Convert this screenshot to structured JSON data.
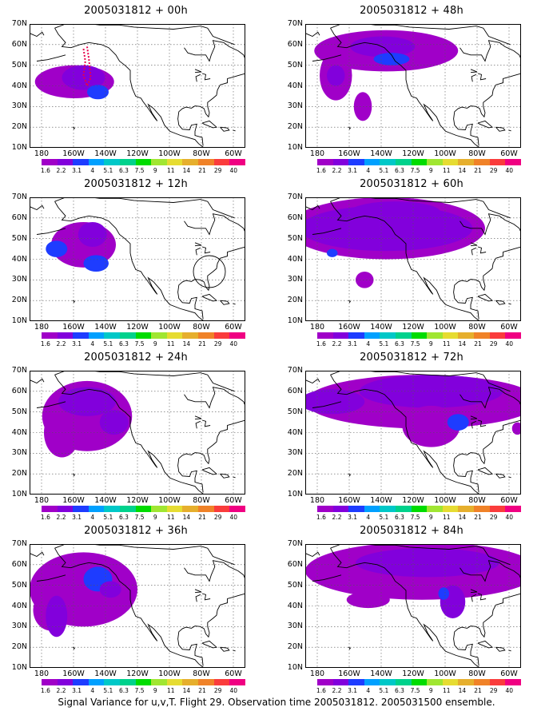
{
  "panels": [
    {
      "title": "2005031812 + 00h"
    },
    {
      "title": "2005031812 + 48h"
    },
    {
      "title": "2005031812 + 12h"
    },
    {
      "title": "2005031812 + 60h"
    },
    {
      "title": "2005031812 + 24h"
    },
    {
      "title": "2005031812 + 72h"
    },
    {
      "title": "2005031812 + 36h"
    },
    {
      "title": "2005031812 + 84h"
    }
  ],
  "map_axes": {
    "lat_labels": [
      "70N",
      "60N",
      "50N",
      "40N",
      "30N",
      "20N",
      "10N"
    ],
    "lon_labels": [
      "180",
      "160W",
      "140W",
      "120W",
      "100W",
      "80W",
      "60W"
    ]
  },
  "colorbar": {
    "labels": [
      "1.6",
      "2.2",
      "3.1",
      "4",
      "5.1",
      "6.3",
      "7.5",
      "9",
      "11",
      "14",
      "21",
      "29",
      "40"
    ],
    "colors": [
      "#a000c8",
      "#8200dc",
      "#1e3cff",
      "#00a0ff",
      "#00c8c8",
      "#00d28c",
      "#00dc00",
      "#a0e632",
      "#e6dc32",
      "#e6af2d",
      "#f08228",
      "#fa3c3c",
      "#f00082"
    ]
  },
  "footer": "Signal Variance for u,v,T. Flight 29. Observation time 2005031812. 2005031500 ensemble."
}
